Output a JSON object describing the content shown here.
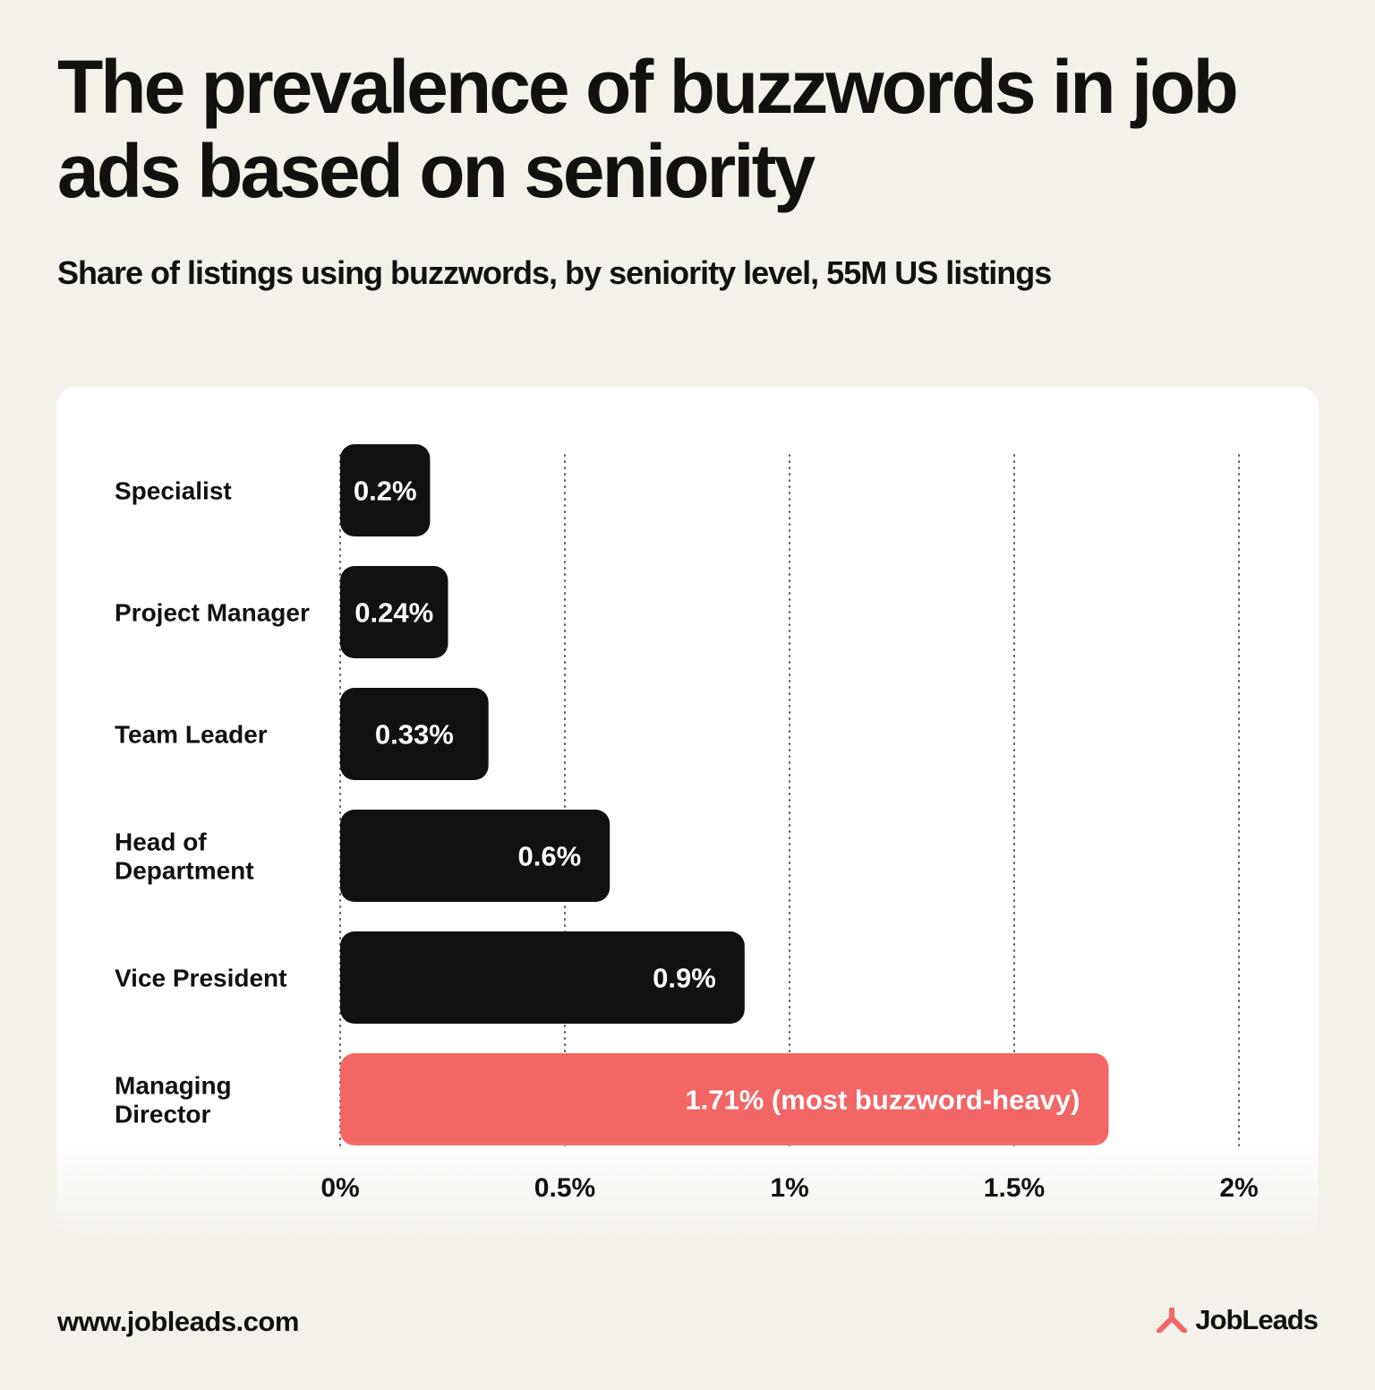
{
  "header": {
    "title": "The prevalence of buzzwords in job ads based on seniority",
    "subtitle": "Share of listings using buzzwords, by seniority level, 55M US listings"
  },
  "chart_data": {
    "type": "bar",
    "orientation": "horizontal",
    "categories": [
      "Specialist",
      "Project Manager",
      "Team Leader",
      "Head of Department",
      "Vice President",
      "Managing Director"
    ],
    "values": [
      0.2,
      0.24,
      0.33,
      0.6,
      0.9,
      1.71
    ],
    "data_labels": [
      "0.2%",
      "0.24%",
      "0.33%",
      "0.6%",
      "0.9%",
      "1.71% (most buzzword-heavy)"
    ],
    "highlight_index": 5,
    "xlim": [
      0,
      2
    ],
    "x_ticks": [
      0,
      0.5,
      1,
      1.5,
      2
    ],
    "x_tick_labels": [
      "0%",
      "0.5%",
      "1%",
      "1.5%",
      "2%"
    ],
    "grid": "vertical dotted",
    "colors": {
      "bar": "#121110",
      "highlight": "#f26666",
      "label_text": "#ffffff"
    }
  },
  "footer": {
    "url": "www.jobleads.com",
    "brand": "JobLeads",
    "brand_icon": "jobleads-logo-icon",
    "brand_color": "#f26666"
  }
}
